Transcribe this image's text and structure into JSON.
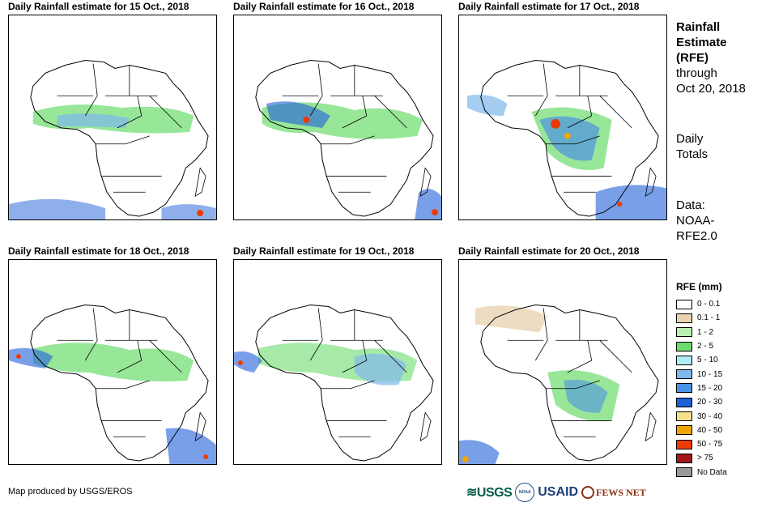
{
  "panels": [
    {
      "title": "Daily Rainfall estimate for 15 Oct., 2018"
    },
    {
      "title": "Daily Rainfall estimate for 16 Oct., 2018"
    },
    {
      "title": "Daily Rainfall estimate for 17 Oct., 2018"
    },
    {
      "title": "Daily Rainfall estimate for 18 Oct., 2018"
    },
    {
      "title": "Daily Rainfall estimate for 19 Oct., 2018"
    },
    {
      "title": "Daily Rainfall estimate for 20 Oct., 2018"
    }
  ],
  "side": {
    "title_line1": "Rainfall",
    "title_line2": "Estimate",
    "title_line3": "(RFE)",
    "through": "through",
    "date": "Oct 20, 2018",
    "daily_line1": "Daily",
    "daily_line2": "Totals",
    "data_line1": "Data:",
    "data_line2": "NOAA-",
    "data_line3": "RFE2.0"
  },
  "legend": {
    "title": "RFE (mm)",
    "items": [
      {
        "label": "0 - 0.1",
        "color": "#ffffff"
      },
      {
        "label": "0.1 - 1",
        "color": "#e8d3b3"
      },
      {
        "label": "1 - 2",
        "color": "#b8f0b0"
      },
      {
        "label": "2 - 5",
        "color": "#6cdc6c"
      },
      {
        "label": "5 - 10",
        "color": "#b0ecf4"
      },
      {
        "label": "10 - 15",
        "color": "#7fb8ec"
      },
      {
        "label": "15 - 20",
        "color": "#4c92e4"
      },
      {
        "label": "20 - 30",
        "color": "#1f5fd8"
      },
      {
        "label": "30 - 40",
        "color": "#f6e08a"
      },
      {
        "label": "40 - 50",
        "color": "#f0a400"
      },
      {
        "label": "50 - 75",
        "color": "#ec3a00"
      },
      {
        "label": "> 75",
        "color": "#a01818"
      },
      {
        "label": "No Data",
        "color": "#999999"
      }
    ]
  },
  "footer": {
    "credit": "Map produced by USGS/EROS",
    "logos": {
      "usgs": "USGS",
      "noaa": "NOAA",
      "usaid": "USAID",
      "fews": "FEWS NET"
    }
  }
}
